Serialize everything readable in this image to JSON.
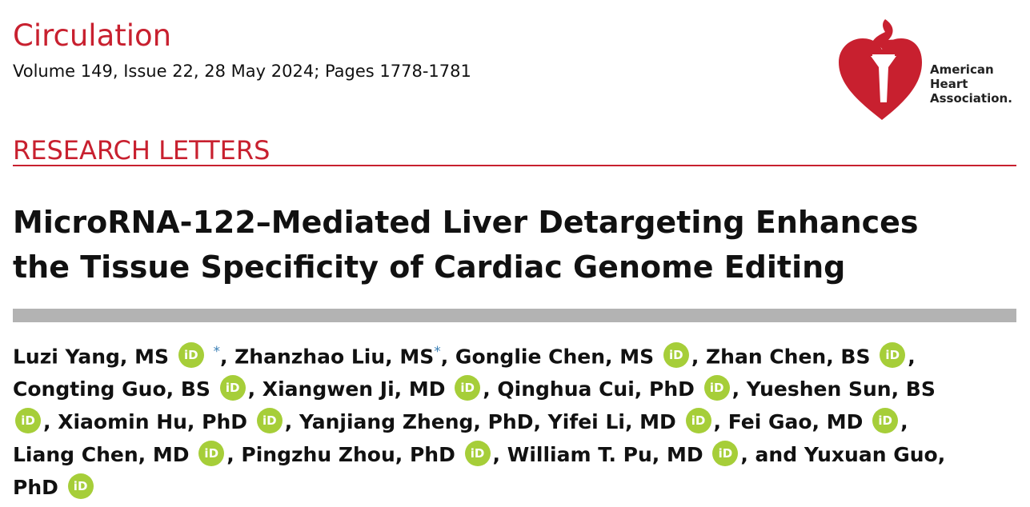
{
  "header": {
    "journal": "Circulation",
    "citation": "Volume 149, Issue 22, 28 May 2024; Pages 1778-1781"
  },
  "publisher_logo": {
    "lines": [
      "American",
      "Heart",
      "Association."
    ]
  },
  "section": "RESEARCH LETTERS",
  "title_lines": [
    "MicroRNA-122–Mediated Liver Detargeting Enhances",
    "the Tissue Specificity of Cardiac Genome Editing"
  ],
  "orcid_badge_text": "iD",
  "equal_contribution_mark": "*",
  "author_lines": [
    {
      "segments": [
        "Luzi Yang, MS",
        ", Zhanzhao Liu, MS",
        ", Gonglie Chen, MS",
        ", Zhan Chen, BS",
        ","
      ]
    },
    {
      "segments": [
        "Congting Guo, BS",
        ", Xiangwen Ji, MD",
        ", Qinghua Cui, PhD",
        ", Yueshen Sun, BS"
      ]
    },
    {
      "segments": [
        ", Xiaomin Hu, PhD",
        ", Yanjiang Zheng, PhD, Yifei Li, MD",
        ", Fei Gao, MD",
        ","
      ]
    },
    {
      "segments": [
        "Liang Chen, MD",
        ", Pingzhu Zhou, PhD",
        ", William T. Pu, MD",
        ", and Yuxuan Guo,"
      ]
    },
    {
      "segments": [
        "PhD"
      ]
    }
  ],
  "colors": {
    "accent_red": "#c8202f",
    "orcid_green": "#a6ce39",
    "rule_gray": "#b3b3b3"
  },
  "icons": [
    "aha-heart-torch-logo-icon",
    "orcid-icon"
  ]
}
